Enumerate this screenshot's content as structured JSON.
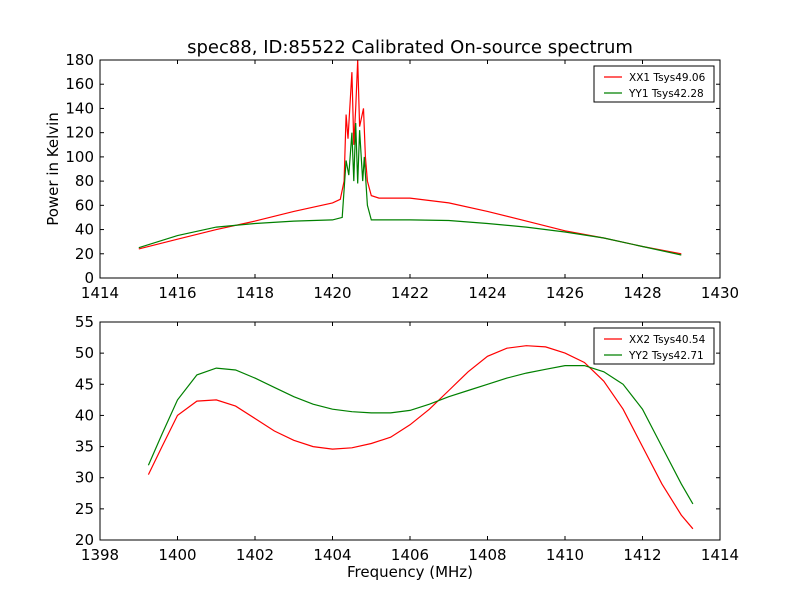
{
  "chart_data": [
    {
      "type": "line",
      "title": "spec88, ID:85522 Calibrated On-source spectrum",
      "xlabel": "",
      "ylabel": "Power in Kelvin",
      "xlim": [
        1414,
        1430
      ],
      "ylim": [
        0,
        180
      ],
      "xticks": [
        1414,
        1416,
        1418,
        1420,
        1422,
        1424,
        1426,
        1428,
        1430
      ],
      "yticks": [
        0,
        20,
        40,
        60,
        80,
        100,
        120,
        140,
        160,
        180
      ],
      "legend_position": "top-right",
      "series": [
        {
          "name": "XX1 Tsys49.06",
          "color": "#ff0000",
          "x": [
            1415,
            1416,
            1417,
            1418,
            1419,
            1420,
            1420.2,
            1420.3,
            1420.35,
            1420.4,
            1420.5,
            1420.55,
            1420.6,
            1420.65,
            1420.7,
            1420.8,
            1420.85,
            1420.9,
            1421,
            1421.2,
            1422,
            1423,
            1424,
            1425,
            1426,
            1427,
            1428,
            1429
          ],
          "y": [
            24,
            32,
            40,
            47,
            55,
            62,
            65,
            80,
            135,
            115,
            170,
            110,
            140,
            180,
            125,
            140,
            100,
            80,
            68,
            66,
            66,
            62,
            55,
            47,
            39,
            33,
            26,
            20
          ]
        },
        {
          "name": "YY1 Tsys42.28",
          "color": "#008000",
          "x": [
            1415,
            1416,
            1417,
            1418,
            1419,
            1420,
            1420.25,
            1420.35,
            1420.42,
            1420.5,
            1420.55,
            1420.6,
            1420.65,
            1420.7,
            1420.78,
            1420.82,
            1420.9,
            1421,
            1422,
            1423,
            1424,
            1425,
            1426,
            1427,
            1428,
            1429
          ],
          "y": [
            25,
            35,
            42,
            45,
            47,
            48,
            50,
            97,
            85,
            120,
            80,
            128,
            78,
            122,
            80,
            100,
            60,
            48,
            48,
            47.5,
            45,
            42,
            38,
            33,
            26,
            19
          ]
        }
      ]
    },
    {
      "type": "line",
      "title": "",
      "xlabel": "Frequency (MHz)",
      "ylabel": "",
      "xlim": [
        1398,
        1414
      ],
      "ylim": [
        20,
        55
      ],
      "xticks": [
        1398,
        1400,
        1402,
        1404,
        1406,
        1408,
        1410,
        1412,
        1414
      ],
      "yticks": [
        20,
        25,
        30,
        35,
        40,
        45,
        50,
        55
      ],
      "legend_position": "top-right",
      "series": [
        {
          "name": "XX2 Tsys40.54",
          "color": "#ff0000",
          "x": [
            1399.25,
            1399.6,
            1400,
            1400.5,
            1401,
            1401.5,
            1402,
            1402.5,
            1403,
            1403.5,
            1404,
            1404.5,
            1405,
            1405.5,
            1406,
            1406.5,
            1407,
            1407.5,
            1408,
            1408.5,
            1409,
            1409.5,
            1410,
            1410.5,
            1411,
            1411.5,
            1412,
            1412.5,
            1413,
            1413.3
          ],
          "y": [
            30.5,
            35,
            40,
            42.3,
            42.5,
            41.5,
            39.5,
            37.5,
            36,
            35,
            34.6,
            34.8,
            35.5,
            36.5,
            38.5,
            41,
            44,
            47,
            49.5,
            50.8,
            51.2,
            51,
            50,
            48.5,
            45.5,
            41,
            35,
            29,
            24,
            21.8
          ]
        },
        {
          "name": "YY2 Tsys42.71",
          "color": "#008000",
          "x": [
            1399.25,
            1399.6,
            1400,
            1400.5,
            1401,
            1401.5,
            1402,
            1402.5,
            1403,
            1403.5,
            1404,
            1404.5,
            1405,
            1405.5,
            1406,
            1406.5,
            1407,
            1407.5,
            1408,
            1408.5,
            1409,
            1409.5,
            1410,
            1410.5,
            1411,
            1411.5,
            1412,
            1412.5,
            1413,
            1413.3
          ],
          "y": [
            32,
            37,
            42.5,
            46.5,
            47.6,
            47.3,
            46,
            44.5,
            43,
            41.8,
            41,
            40.6,
            40.4,
            40.4,
            40.8,
            41.8,
            43,
            44,
            45,
            46,
            46.8,
            47.4,
            48,
            48,
            47,
            45,
            41,
            35,
            29,
            25.8
          ]
        }
      ]
    }
  ]
}
